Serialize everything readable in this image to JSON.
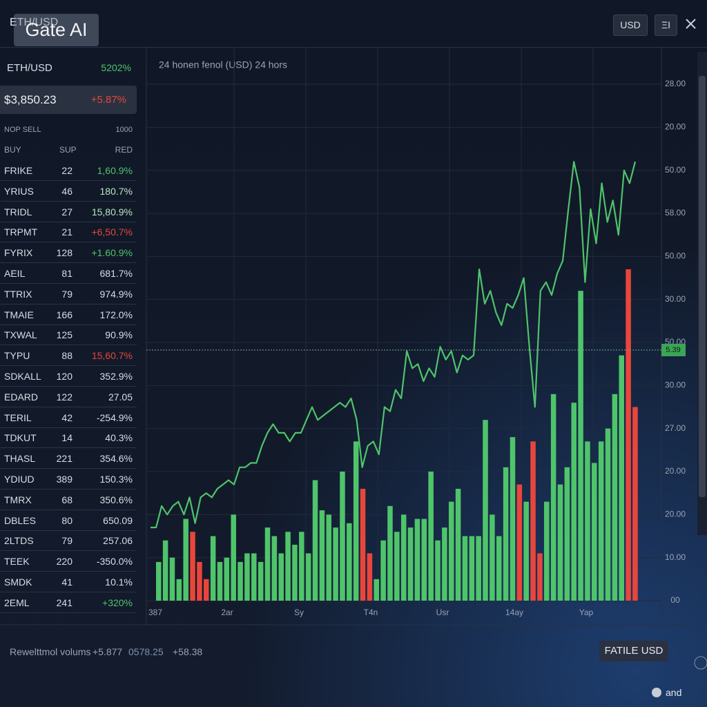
{
  "header": {
    "title": "ETH/USD",
    "watermark": "Gate AI",
    "currency_button": "USD",
    "menu_button": "ΞI"
  },
  "sidebar": {
    "pair": "ETH/USD",
    "pair_change": "5202%",
    "price": "$3,850.23",
    "price_change": "+5.87%",
    "list_header": [
      "NOP SELL",
      "1000"
    ],
    "columns": [
      "BUY",
      "SUP",
      "RED"
    ],
    "rows": [
      {
        "name": "FRIKE",
        "qty": "22",
        "change": "1,60.9%",
        "color": "#4fc46b"
      },
      {
        "name": "YRIUS",
        "qty": "46",
        "change": "180.7%",
        "color": "#b9e7c4"
      },
      {
        "name": "TRIDL",
        "qty": "27",
        "change": "15,80.9%",
        "color": "#b9e7c4"
      },
      {
        "name": "TRPMT",
        "qty": "21",
        "change": "+6,50.7%",
        "color": "#e8463c"
      },
      {
        "name": "FYRIX",
        "qty": "128",
        "change": "+1.60.9%",
        "color": "#4fc46b"
      },
      {
        "name": "AEIL",
        "qty": "81",
        "change": "681.7%",
        "color": "#d9dde6"
      },
      {
        "name": "TTRIX",
        "qty": "79",
        "change": "974.9%",
        "color": "#d9dde6"
      },
      {
        "name": "TMAIE",
        "qty": "166",
        "change": "172.0%",
        "color": "#d9dde6"
      },
      {
        "name": "TXWAL",
        "qty": "125",
        "change": "90.9%",
        "color": "#d9dde6"
      },
      {
        "name": "TYPU",
        "qty": "88",
        "change": "15,60.7%",
        "color": "#e8463c"
      },
      {
        "name": "SDKALL",
        "qty": "120",
        "change": "352.9%",
        "color": "#d9dde6"
      },
      {
        "name": "EDARD",
        "qty": "122",
        "change": "27.05",
        "color": "#d9dde6"
      },
      {
        "name": "TERIL",
        "qty": "42",
        "change": "-254.9%",
        "color": "#d9dde6"
      },
      {
        "name": "TDKUT",
        "qty": "14",
        "change": "40.3%",
        "color": "#d9dde6"
      },
      {
        "name": "THASL",
        "qty": "221",
        "change": "354.6%",
        "color": "#d9dde6"
      },
      {
        "name": "YDIUD",
        "qty": "389",
        "change": "150.3%",
        "color": "#d9dde6"
      },
      {
        "name": "TMRX",
        "qty": "68",
        "change": "350.6%",
        "color": "#d9dde6"
      },
      {
        "name": "DBLES",
        "qty": "80",
        "change": "650.09",
        "color": "#d9dde6"
      },
      {
        "name": "2LTDS",
        "qty": "79",
        "change": "257.06",
        "color": "#d9dde6"
      },
      {
        "name": "TEEK",
        "qty": "220",
        "change": "-350.0%",
        "color": "#d9dde6"
      },
      {
        "name": "SMDK",
        "qty": "41",
        "change": "10.1%",
        "color": "#d9dde6"
      },
      {
        "name": "2EML",
        "qty": "241",
        "change": "+320%",
        "color": "#4fc46b"
      }
    ]
  },
  "chart_data": {
    "type": "line",
    "title": "24 honen fenol (USD) 24 hors",
    "ylim": [
      0,
      12
    ],
    "grid": true,
    "yticks": [
      {
        "value": 0,
        "label": "00"
      },
      {
        "value": 1,
        "label": "10.00"
      },
      {
        "value": 2,
        "label": "20.00"
      },
      {
        "value": 3,
        "label": "20.00"
      },
      {
        "value": 4,
        "label": "27.00"
      },
      {
        "value": 5,
        "label": "30.00"
      },
      {
        "value": 6,
        "label": "50.00"
      },
      {
        "value": 7,
        "label": "30.00"
      },
      {
        "value": 8,
        "label": "50.00"
      },
      {
        "value": 9,
        "label": "58.00"
      },
      {
        "value": 10,
        "label": "50.00"
      },
      {
        "value": 11,
        "label": "20.00"
      },
      {
        "value": 12,
        "label": "28.00"
      }
    ],
    "x_labels": [
      "387",
      "2ar",
      "Sy",
      "T4n",
      "Usr",
      "14ay",
      "Yap"
    ],
    "current_price": "5.39",
    "series": [
      {
        "type": "line",
        "color": "#4fc46b",
        "values": [
          1.7,
          1.7,
          2.2,
          2.0,
          2.2,
          2.3,
          2.0,
          2.4,
          1.8,
          2.4,
          2.5,
          2.4,
          2.6,
          2.7,
          2.8,
          2.7,
          3.1,
          3.1,
          3.2,
          3.2,
          3.6,
          3.9,
          4.1,
          3.9,
          3.9,
          3.7,
          3.9,
          3.9,
          4.2,
          4.5,
          4.2,
          4.3,
          4.4,
          4.5,
          4.6,
          4.5,
          4.7,
          4.2,
          3.1,
          3.6,
          3.7,
          3.4,
          4.5,
          4.4,
          4.9,
          4.7,
          5.8,
          5.4,
          5.5,
          5.1,
          5.4,
          5.2,
          5.9,
          5.6,
          5.8,
          5.3,
          5.7,
          5.6,
          5.7,
          7.7,
          6.9,
          7.2,
          6.7,
          6.4,
          6.9,
          6.8,
          7.1,
          7.5,
          5.9,
          4.5,
          7.2,
          7.4,
          7.1,
          7.6,
          7.9,
          9.1,
          10.2,
          9.6,
          7.4,
          9.1,
          8.3,
          9.7,
          8.8,
          9.3,
          8.5,
          10.0,
          9.7,
          10.2
        ]
      },
      {
        "type": "bar",
        "values": [
          0.9,
          1.4,
          1.0,
          0.5,
          1.9,
          1.6,
          0.9,
          0.5,
          1.5,
          0.9,
          1.0,
          2.0,
          0.9,
          1.1,
          1.1,
          0.9,
          1.7,
          1.5,
          1.1,
          1.6,
          1.3,
          1.6,
          1.1,
          2.8,
          2.1,
          2.0,
          1.7,
          3.0,
          1.8,
          3.7,
          2.6,
          1.1,
          0.5,
          1.4,
          2.2,
          1.6,
          2.0,
          1.7,
          1.9,
          1.9,
          3.0,
          1.4,
          1.7,
          2.3,
          2.6,
          1.5,
          1.5,
          1.5,
          4.2,
          2.0,
          1.5,
          3.1,
          3.8,
          2.7,
          2.3,
          3.7,
          1.1,
          2.3,
          4.8,
          2.7,
          3.1,
          4.6,
          7.2,
          3.7,
          3.2,
          3.7,
          4.0,
          4.8,
          5.7,
          7.7,
          4.5
        ],
        "colors": [
          "#4fc46b",
          "#4fc46b",
          "#4fc46b",
          "#4fc46b",
          "#4fc46b",
          "#e8463c",
          "#e8463c",
          "#e8463c",
          "#4fc46b",
          "#4fc46b",
          "#4fc46b",
          "#4fc46b",
          "#4fc46b",
          "#4fc46b",
          "#4fc46b",
          "#4fc46b",
          "#4fc46b",
          "#4fc46b",
          "#4fc46b",
          "#4fc46b",
          "#4fc46b",
          "#4fc46b",
          "#4fc46b",
          "#4fc46b",
          "#4fc46b",
          "#4fc46b",
          "#4fc46b",
          "#4fc46b",
          "#4fc46b",
          "#4fc46b",
          "#e8463c",
          "#e8463c",
          "#4fc46b",
          "#4fc46b",
          "#4fc46b",
          "#4fc46b",
          "#4fc46b",
          "#4fc46b",
          "#4fc46b",
          "#4fc46b",
          "#4fc46b",
          "#4fc46b",
          "#4fc46b",
          "#4fc46b",
          "#4fc46b",
          "#4fc46b",
          "#4fc46b",
          "#4fc46b",
          "#4fc46b",
          "#4fc46b",
          "#4fc46b",
          "#4fc46b",
          "#4fc46b",
          "#e8463c",
          "#4fc46b",
          "#e8463c",
          "#e8463c",
          "#4fc46b",
          "#4fc46b",
          "#4fc46b",
          "#4fc46b",
          "#4fc46b",
          "#4fc46b",
          "#4fc46b",
          "#4fc46b",
          "#4fc46b",
          "#4fc46b",
          "#4fc46b",
          "#4fc46b",
          "#e8463c",
          "#e8463c"
        ]
      }
    ]
  },
  "footer": {
    "label": "Rewelttmol volums",
    "value_1": "+5.877",
    "value_2": "0578.25",
    "value_3": "+58.38",
    "button": "FATILE USD",
    "badge": "and"
  }
}
